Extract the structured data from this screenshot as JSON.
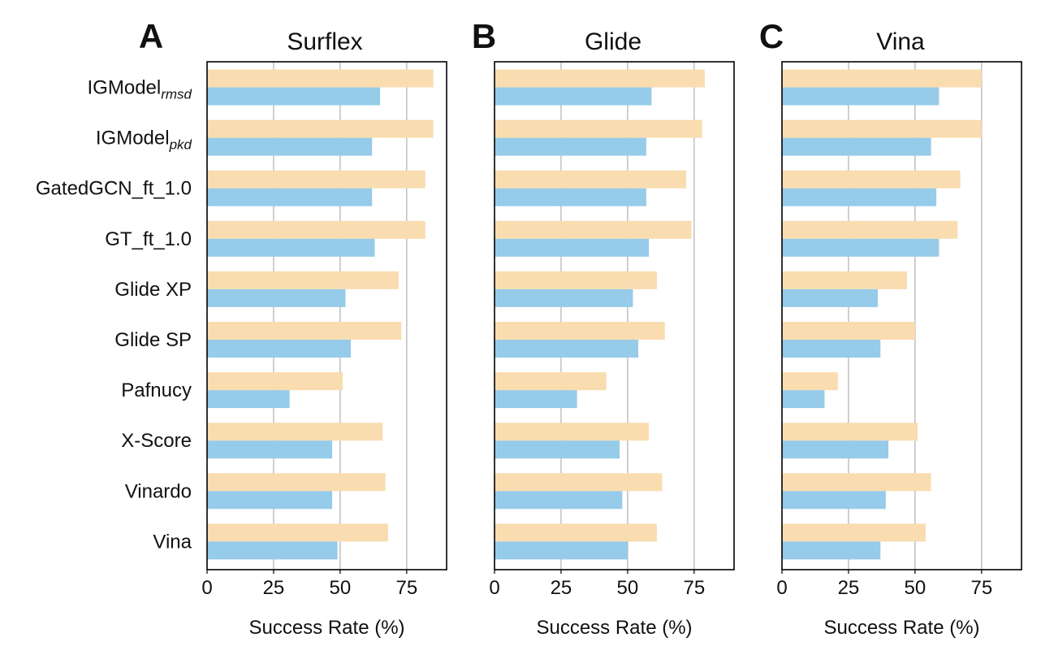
{
  "chart_data": {
    "type": "bar",
    "orientation": "horizontal",
    "categories": [
      {
        "base": "IGModel",
        "sub": "rmsd"
      },
      {
        "base": "IGModel",
        "sub": "pkd"
      },
      {
        "base": "GatedGCN_ft_1.0",
        "sub": ""
      },
      {
        "base": "GT_ft_1.0",
        "sub": ""
      },
      {
        "base": "Glide XP",
        "sub": ""
      },
      {
        "base": "Glide SP",
        "sub": ""
      },
      {
        "base": "Pafnucy",
        "sub": ""
      },
      {
        "base": "X-Score",
        "sub": ""
      },
      {
        "base": "Vinardo",
        "sub": ""
      },
      {
        "base": "Vina",
        "sub": ""
      }
    ],
    "xlabel": "Success Rate (%)",
    "xlim": [
      0,
      90
    ],
    "xticks": [
      0,
      25,
      50,
      75
    ],
    "grid": true,
    "series_colors": [
      "#f9ddb0",
      "#96cbe9"
    ],
    "panels": [
      {
        "letter": "A",
        "title": "Surflex",
        "series": [
          {
            "values": [
              85,
              85,
              82,
              82,
              72,
              73,
              51,
              66,
              67,
              68
            ]
          },
          {
            "values": [
              65,
              62,
              62,
              63,
              52,
              54,
              31,
              47,
              47,
              49
            ]
          }
        ]
      },
      {
        "letter": "B",
        "title": "Glide",
        "series": [
          {
            "values": [
              79,
              78,
              72,
              74,
              61,
              64,
              42,
              58,
              63,
              61
            ]
          },
          {
            "values": [
              59,
              57,
              57,
              58,
              52,
              54,
              31,
              47,
              48,
              50
            ]
          }
        ]
      },
      {
        "letter": "C",
        "title": "Vina",
        "series": [
          {
            "values": [
              75,
              75,
              67,
              66,
              47,
              50,
              21,
              51,
              56,
              54
            ]
          },
          {
            "values": [
              59,
              56,
              58,
              59,
              36,
              37,
              16,
              40,
              39,
              37
            ]
          }
        ]
      }
    ]
  }
}
